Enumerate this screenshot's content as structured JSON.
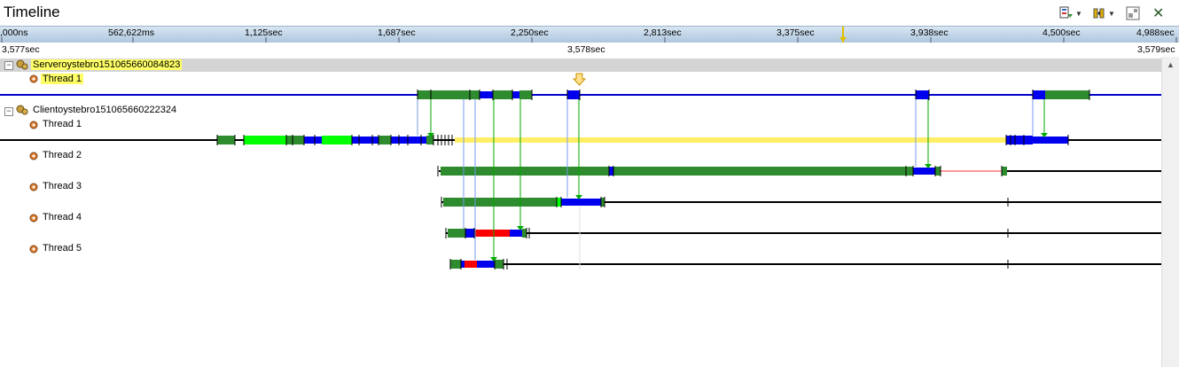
{
  "title": "Timeline",
  "toolbar": {
    "buttons": [
      {
        "name": "export-icon",
        "has_dropdown": true
      },
      {
        "name": "filter-icon",
        "has_dropdown": true
      },
      {
        "name": "layout-icon",
        "has_dropdown": false
      },
      {
        "name": "close-icon",
        "has_dropdown": false
      }
    ],
    "close_symbol": "✕"
  },
  "ruler": {
    "ticks": [
      ",000ns",
      "562,622ms",
      "1,125sec",
      "1,687sec",
      "2,250sec",
      "2,813sec",
      "3,375sec",
      "3,938sec",
      "4,500sec",
      "4,988sec"
    ],
    "zoom_left": "3,577sec",
    "zoom_center": "3,578sec",
    "zoom_right": "3,579sec"
  },
  "tree": {
    "server": {
      "name": "Serveroystebro151065660084823",
      "threads": [
        "Thread 1"
      ]
    },
    "client": {
      "name": "Clientoystebro151065660222324",
      "threads": [
        "Thread 1",
        "Thread 2",
        "Thread 3",
        "Thread 4",
        "Thread 5"
      ]
    },
    "collapse_symbol": "−"
  },
  "colors": {
    "dark_green": "#2e8b2e",
    "bright_green": "#00ff00",
    "blue": "#0000ee",
    "red": "#ff0000",
    "yellow": "#ffee66",
    "pink": "#ff9999",
    "server_line": "#0000cc",
    "link_line": "#00aa00",
    "link_line_light": "#7799ee"
  }
}
